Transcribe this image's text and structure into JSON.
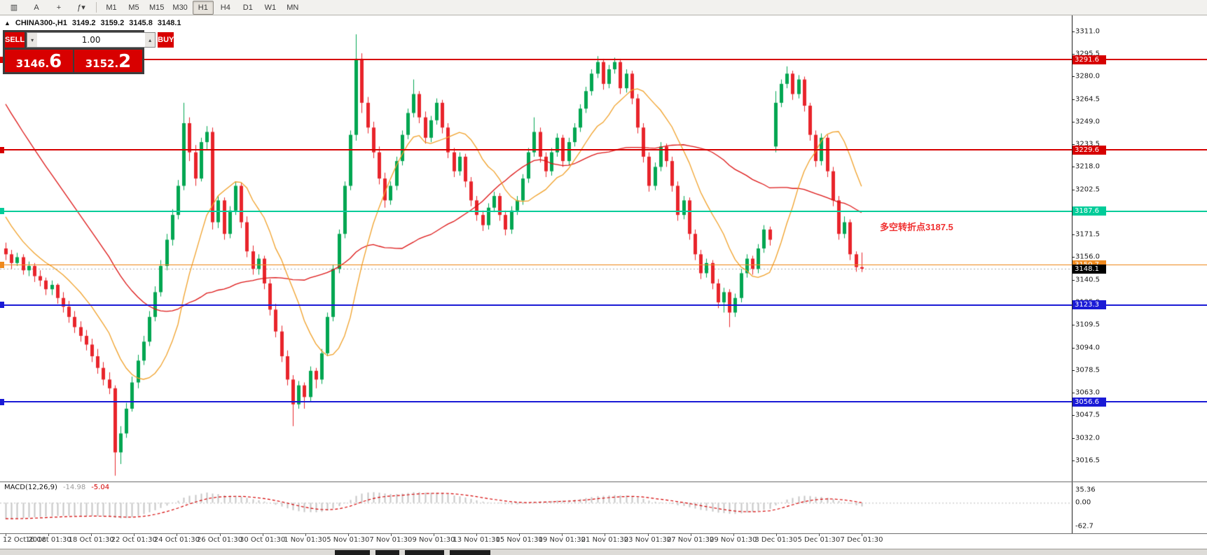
{
  "toolbar": {
    "icon_buttons": [
      {
        "name": "chart-type-icon",
        "glyph": "▥"
      },
      {
        "name": "text-tool-icon",
        "glyph": "A"
      },
      {
        "name": "crosshair-icon",
        "glyph": "+"
      },
      {
        "name": "indicators-dropdown-icon",
        "glyph": "ƒ▾"
      }
    ],
    "timeframes": [
      {
        "label": "M1",
        "active": false
      },
      {
        "label": "M5",
        "active": false
      },
      {
        "label": "M15",
        "active": false
      },
      {
        "label": "M30",
        "active": false
      },
      {
        "label": "H1",
        "active": true
      },
      {
        "label": "H4",
        "active": false
      },
      {
        "label": "D1",
        "active": false
      },
      {
        "label": "W1",
        "active": false
      },
      {
        "label": "MN",
        "active": false
      }
    ]
  },
  "chart_header": {
    "collapse_icon": "▲",
    "symbol": "CHINA300-,H1",
    "open": "3149.2",
    "high": "3159.2",
    "low": "3145.8",
    "close": "3148.1"
  },
  "trade_panel": {
    "sell_label": "SELL",
    "buy_label": "BUY",
    "volume": "1.00",
    "vol_down_icon": "▾",
    "vol_up_icon": "▴",
    "sell_price": "3146.",
    "sell_price_big": "6",
    "buy_price": "3152.",
    "buy_price_big": "2"
  },
  "price_axis": {
    "ticks": [
      "3311.0",
      "3295.5",
      "3280.0",
      "3264.5",
      "3249.0",
      "3233.5",
      "3218.0",
      "3202.5",
      "3187.0",
      "3171.5",
      "3156.0",
      "3140.5",
      "3125.0",
      "3109.5",
      "3094.0",
      "3078.5",
      "3063.0",
      "3047.5",
      "3032.0",
      "3016.5"
    ]
  },
  "levels": [
    {
      "price": 3291.6,
      "label": "3291.6",
      "color": "#d60000",
      "thick": 2,
      "type": "resistance-line"
    },
    {
      "price": 3229.6,
      "label": "3229.6",
      "color": "#d60000",
      "thick": 2,
      "type": "resistance-line"
    },
    {
      "price": 3187.6,
      "label": "3187.6",
      "color": "#00cc99",
      "thick": 2,
      "type": "pivot-line"
    },
    {
      "price": 3150.7,
      "label": "3150.7",
      "color": "#ef8a1e",
      "thick": 1,
      "type": "support-line"
    },
    {
      "price": 3123.3,
      "label": "3123.3",
      "color": "#1a1ad6",
      "thick": 2,
      "type": "support-line"
    },
    {
      "price": 3056.6,
      "label": "3056.6",
      "color": "#1a1ad6",
      "thick": 2,
      "type": "support-line"
    }
  ],
  "current_price": {
    "label": "3148.1",
    "value": 3148.1,
    "badge_color": "#000000",
    "line_color": "#a8a8a8"
  },
  "annotation": {
    "text": "多空转折点3187.5",
    "color": "#f03030"
  },
  "x_axis": {
    "labels": [
      "12 Oct 2018",
      "16 Oct 01:30",
      "18 Oct 01:30",
      "22 Oct 01:30",
      "24 Oct 01:30",
      "26 Oct 01:30",
      "30 Oct 01:30",
      "1 Nov 01:30",
      "5 Nov 01:30",
      "7 Nov 01:30",
      "9 Nov 01:30",
      "13 Nov 01:30",
      "15 Nov 01:30",
      "19 Nov 01:30",
      "21 Nov 01:30",
      "23 Nov 01:30",
      "27 Nov 01:30",
      "29 Nov 01:30",
      "3 Dec 01:30",
      "5 Dec 01:30",
      "7 Dec 01:30"
    ]
  },
  "macd": {
    "title": "MACD(12,26,9)",
    "main_value": "-14.98",
    "signal_value": "-5.04",
    "axis_labels": [
      "35.36",
      "0.00",
      "-62.7"
    ],
    "axis_values": [
      35.36,
      0,
      -62.7
    ],
    "fast": 12,
    "slow": 26,
    "signal": 9,
    "histogram_color": "#c6c6c6",
    "signal_color": "#d40000"
  },
  "chart_data": {
    "type": "candlestick",
    "symbol": "CHINA300-",
    "timeframe": "H1",
    "title": "CHINA300- H1 candlestick chart with MACD(12,26,9)",
    "up_color": "#00a651",
    "down_color": "#e8242b",
    "ma_fast": {
      "period": 12,
      "color": "#f0a028"
    },
    "ma_slow": {
      "period": 34,
      "color": "#dc1414"
    },
    "ylim": [
      3002,
      3322
    ],
    "pre_closes": [
      3420,
      3413,
      3407,
      3400,
      3393,
      3387,
      3380,
      3373,
      3367,
      3360,
      3353,
      3347,
      3340,
      3333,
      3327,
      3320,
      3313,
      3307,
      3300,
      3293,
      3287,
      3280,
      3273,
      3267,
      3260,
      3253,
      3247,
      3240,
      3233,
      3227,
      3220,
      3210,
      3200,
      3190,
      3180,
      3172,
      3166,
      3162,
      3160,
      3159
    ],
    "candles": [
      [
        3162,
        3166,
        3154,
        3158
      ],
      [
        3158,
        3161,
        3148,
        3152
      ],
      [
        3152,
        3159,
        3150,
        3156
      ],
      [
        3156,
        3158,
        3144,
        3147
      ],
      [
        3147,
        3153,
        3143,
        3150
      ],
      [
        3150,
        3152,
        3139,
        3143
      ],
      [
        3143,
        3147,
        3136,
        3140
      ],
      [
        3140,
        3142,
        3130,
        3134
      ],
      [
        3134,
        3140,
        3130,
        3137
      ],
      [
        3137,
        3138,
        3124,
        3128
      ],
      [
        3128,
        3132,
        3118,
        3122
      ],
      [
        3122,
        3126,
        3111,
        3115
      ],
      [
        3115,
        3119,
        3104,
        3108
      ],
      [
        3108,
        3112,
        3098,
        3102
      ],
      [
        3102,
        3106,
        3092,
        3096
      ],
      [
        3096,
        3100,
        3084,
        3088
      ],
      [
        3088,
        3093,
        3076,
        3080
      ],
      [
        3080,
        3084,
        3068,
        3072
      ],
      [
        3072,
        3077,
        3062,
        3066
      ],
      [
        3066,
        3068,
        3006,
        3022
      ],
      [
        3022,
        3040,
        3014,
        3035
      ],
      [
        3035,
        3056,
        3032,
        3052
      ],
      [
        3052,
        3074,
        3050,
        3070
      ],
      [
        3070,
        3089,
        3066,
        3085
      ],
      [
        3085,
        3102,
        3082,
        3098
      ],
      [
        3098,
        3119,
        3095,
        3115
      ],
      [
        3115,
        3136,
        3112,
        3132
      ],
      [
        3132,
        3154,
        3129,
        3150
      ],
      [
        3150,
        3172,
        3147,
        3168
      ],
      [
        3168,
        3189,
        3164,
        3185
      ],
      [
        3185,
        3209,
        3182,
        3205
      ],
      [
        3205,
        3262,
        3202,
        3248
      ],
      [
        3248,
        3252,
        3222,
        3228
      ],
      [
        3228,
        3233,
        3205,
        3210
      ],
      [
        3210,
        3238,
        3208,
        3235
      ],
      [
        3235,
        3246,
        3230,
        3242
      ],
      [
        3242,
        3245,
        3175,
        3180
      ],
      [
        3180,
        3198,
        3176,
        3195
      ],
      [
        3195,
        3197,
        3168,
        3172
      ],
      [
        3172,
        3191,
        3169,
        3188
      ],
      [
        3188,
        3208,
        3185,
        3205
      ],
      [
        3205,
        3207,
        3176,
        3180
      ],
      [
        3180,
        3184,
        3156,
        3160
      ],
      [
        3160,
        3164,
        3144,
        3148
      ],
      [
        3148,
        3158,
        3144,
        3155
      ],
      [
        3155,
        3157,
        3134,
        3138
      ],
      [
        3138,
        3141,
        3116,
        3120
      ],
      [
        3120,
        3124,
        3101,
        3105
      ],
      [
        3105,
        3109,
        3084,
        3088
      ],
      [
        3088,
        3092,
        3068,
        3072
      ],
      [
        3072,
        3075,
        3040,
        3055
      ],
      [
        3055,
        3071,
        3052,
        3068
      ],
      [
        3068,
        3070,
        3052,
        3060
      ],
      [
        3060,
        3081,
        3057,
        3078
      ],
      [
        3078,
        3080,
        3066,
        3072
      ],
      [
        3072,
        3093,
        3069,
        3090
      ],
      [
        3090,
        3118,
        3088,
        3115
      ],
      [
        3115,
        3151,
        3112,
        3148
      ],
      [
        3148,
        3175,
        3145,
        3172
      ],
      [
        3172,
        3208,
        3169,
        3205
      ],
      [
        3205,
        3243,
        3202,
        3240
      ],
      [
        3240,
        3309,
        3236,
        3292
      ],
      [
        3292,
        3296,
        3255,
        3262
      ],
      [
        3262,
        3266,
        3241,
        3245
      ],
      [
        3245,
        3249,
        3224,
        3228
      ],
      [
        3228,
        3232,
        3206,
        3210
      ],
      [
        3210,
        3214,
        3190,
        3195
      ],
      [
        3195,
        3208,
        3192,
        3205
      ],
      [
        3205,
        3225,
        3202,
        3222
      ],
      [
        3222,
        3243,
        3219,
        3240
      ],
      [
        3240,
        3258,
        3237,
        3255
      ],
      [
        3255,
        3278,
        3252,
        3268
      ],
      [
        3268,
        3270,
        3248,
        3252
      ],
      [
        3252,
        3256,
        3234,
        3238
      ],
      [
        3238,
        3253,
        3235,
        3250
      ],
      [
        3250,
        3265,
        3247,
        3262
      ],
      [
        3262,
        3264,
        3241,
        3245
      ],
      [
        3245,
        3248,
        3224,
        3228
      ],
      [
        3228,
        3231,
        3211,
        3215
      ],
      [
        3215,
        3228,
        3212,
        3225
      ],
      [
        3225,
        3227,
        3204,
        3208
      ],
      [
        3208,
        3211,
        3191,
        3195
      ],
      [
        3195,
        3198,
        3181,
        3185
      ],
      [
        3185,
        3188,
        3174,
        3178
      ],
      [
        3178,
        3193,
        3175,
        3190
      ],
      [
        3190,
        3201,
        3187,
        3198
      ],
      [
        3198,
        3200,
        3181,
        3185
      ],
      [
        3185,
        3188,
        3171,
        3175
      ],
      [
        3175,
        3191,
        3172,
        3188
      ],
      [
        3188,
        3198,
        3185,
        3195
      ],
      [
        3195,
        3213,
        3192,
        3210
      ],
      [
        3210,
        3231,
        3207,
        3228
      ],
      [
        3228,
        3252,
        3225,
        3242
      ],
      [
        3242,
        3245,
        3221,
        3225
      ],
      [
        3225,
        3228,
        3211,
        3215
      ],
      [
        3215,
        3231,
        3212,
        3228
      ],
      [
        3228,
        3241,
        3225,
        3238
      ],
      [
        3238,
        3240,
        3218,
        3222
      ],
      [
        3222,
        3238,
        3219,
        3235
      ],
      [
        3235,
        3248,
        3232,
        3245
      ],
      [
        3245,
        3261,
        3242,
        3258
      ],
      [
        3258,
        3273,
        3255,
        3270
      ],
      [
        3270,
        3285,
        3267,
        3282
      ],
      [
        3282,
        3294,
        3279,
        3290
      ],
      [
        3290,
        3292,
        3271,
        3275
      ],
      [
        3275,
        3288,
        3272,
        3285
      ],
      [
        3285,
        3293,
        3282,
        3290
      ],
      [
        3290,
        3292,
        3268,
        3272
      ],
      [
        3272,
        3285,
        3269,
        3282
      ],
      [
        3282,
        3284,
        3261,
        3265
      ],
      [
        3265,
        3268,
        3241,
        3245
      ],
      [
        3245,
        3248,
        3221,
        3225
      ],
      [
        3225,
        3228,
        3201,
        3205
      ],
      [
        3205,
        3221,
        3202,
        3218
      ],
      [
        3218,
        3235,
        3215,
        3232
      ],
      [
        3232,
        3234,
        3218,
        3222
      ],
      [
        3222,
        3225,
        3201,
        3205
      ],
      [
        3205,
        3208,
        3181,
        3185
      ],
      [
        3185,
        3198,
        3182,
        3195
      ],
      [
        3195,
        3197,
        3168,
        3172
      ],
      [
        3172,
        3175,
        3154,
        3158
      ],
      [
        3158,
        3161,
        3141,
        3145
      ],
      [
        3145,
        3155,
        3142,
        3152
      ],
      [
        3152,
        3154,
        3134,
        3138
      ],
      [
        3138,
        3141,
        3121,
        3125
      ],
      [
        3125,
        3135,
        3118,
        3132
      ],
      [
        3132,
        3134,
        3108,
        3118
      ],
      [
        3118,
        3131,
        3115,
        3128
      ],
      [
        3128,
        3148,
        3125,
        3145
      ],
      [
        3145,
        3158,
        3142,
        3155
      ],
      [
        3155,
        3157,
        3144,
        3148
      ],
      [
        3148,
        3165,
        3145,
        3162
      ],
      [
        3162,
        3178,
        3159,
        3175
      ],
      [
        3175,
        3177,
        3164,
        3168
      ],
      [
        3232,
        3270,
        3228,
        3262
      ],
      [
        3262,
        3278,
        3259,
        3275
      ],
      [
        3275,
        3287,
        3272,
        3282
      ],
      [
        3282,
        3284,
        3264,
        3268
      ],
      [
        3268,
        3281,
        3265,
        3278
      ],
      [
        3278,
        3280,
        3256,
        3260
      ],
      [
        3260,
        3262,
        3236,
        3240
      ],
      [
        3240,
        3243,
        3218,
        3222
      ],
      [
        3222,
        3241,
        3219,
        3238
      ],
      [
        3238,
        3240,
        3211,
        3215
      ],
      [
        3215,
        3218,
        3191,
        3195
      ],
      [
        3195,
        3198,
        3168,
        3172
      ],
      [
        3172,
        3184,
        3169,
        3180
      ],
      [
        3180,
        3182,
        3154,
        3158
      ],
      [
        3158,
        3160,
        3146,
        3149.2
      ],
      [
        3149.2,
        3159.2,
        3145.8,
        3148.1
      ]
    ]
  },
  "bottom_strip": {
    "segments": [
      [
        478,
        50
      ],
      [
        536,
        34
      ],
      [
        578,
        56
      ],
      [
        642,
        58
      ]
    ]
  }
}
